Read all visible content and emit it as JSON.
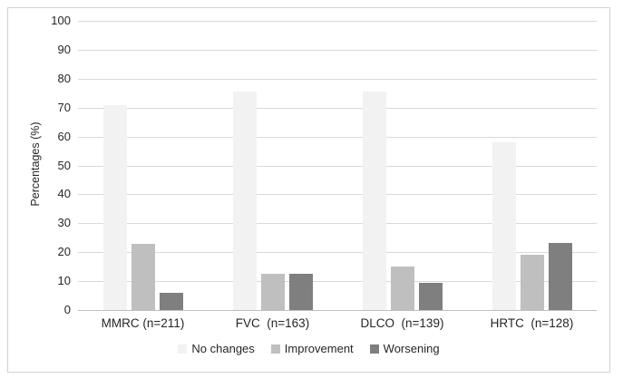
{
  "chart_data": {
    "type": "bar",
    "title": "",
    "xlabel": "",
    "ylabel": "Percentages (%)",
    "ylim": [
      0,
      100
    ],
    "yticks": [
      0,
      10,
      20,
      30,
      40,
      50,
      60,
      70,
      80,
      90,
      100
    ],
    "grid": true,
    "legend_position": "bottom-center",
    "categories": [
      "MMRC (n=211)",
      "FVC  (n=163)",
      "DLCO  (n=139)",
      "HRTC  (n=128)"
    ],
    "series": [
      {
        "name": "No changes",
        "color": "#f2f2f2",
        "values": [
          71,
          75.5,
          75.5,
          58
        ]
      },
      {
        "name": "Improvement",
        "color": "#bfbfbf",
        "values": [
          23,
          12.5,
          15,
          19
        ]
      },
      {
        "name": "Worsening",
        "color": "#7f7f7f",
        "values": [
          6,
          12.5,
          9.5,
          23.3
        ]
      }
    ]
  },
  "colors": {
    "gridline": "#d9d9d9",
    "axis_line": "#bfbfbf",
    "frame_border": "#d2d2d2",
    "text": "#262626",
    "background": "#ffffff"
  }
}
